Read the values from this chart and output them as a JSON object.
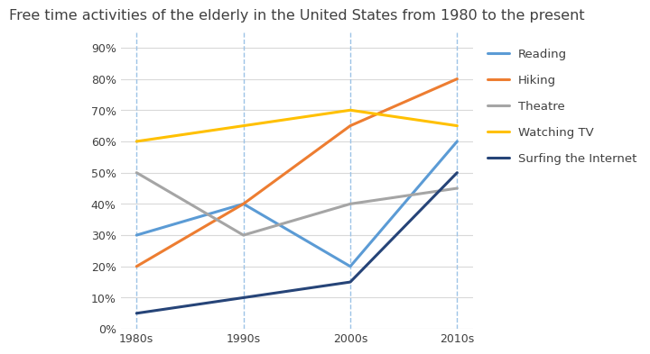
{
  "title": "Free time activities of the elderly in the United States from 1980 to the present",
  "x_labels": [
    "1980s",
    "1990s",
    "2000s",
    "2010s"
  ],
  "x_values": [
    0,
    1,
    2,
    3
  ],
  "series": [
    {
      "name": "Reading",
      "values": [
        30,
        40,
        20,
        60
      ],
      "color": "#5B9BD5",
      "linewidth": 2.2
    },
    {
      "name": "Hiking",
      "values": [
        20,
        40,
        65,
        80
      ],
      "color": "#ED7D31",
      "linewidth": 2.2
    },
    {
      "name": "Theatre",
      "values": [
        50,
        30,
        40,
        45
      ],
      "color": "#A5A5A5",
      "linewidth": 2.2
    },
    {
      "name": "Watching TV",
      "values": [
        60,
        65,
        70,
        65
      ],
      "color": "#FFC000",
      "linewidth": 2.2
    },
    {
      "name": "Surfing the Internet",
      "values": [
        5,
        10,
        15,
        50
      ],
      "color": "#264478",
      "linewidth": 2.2
    }
  ],
  "ylim": [
    0,
    95
  ],
  "yticks": [
    0,
    10,
    20,
    30,
    40,
    50,
    60,
    70,
    80,
    90
  ],
  "ytick_labels": [
    "0%",
    "10%",
    "20%",
    "30%",
    "40%",
    "50%",
    "60%",
    "70%",
    "80%",
    "90%"
  ],
  "grid_color": "#D9D9D9",
  "vline_color": "#9DC3E6",
  "title_fontsize": 11.5,
  "tick_fontsize": 9,
  "legend_fontsize": 9.5,
  "legend_text_color": "#404040",
  "title_color": "#404040",
  "background_color": "#FFFFFF"
}
